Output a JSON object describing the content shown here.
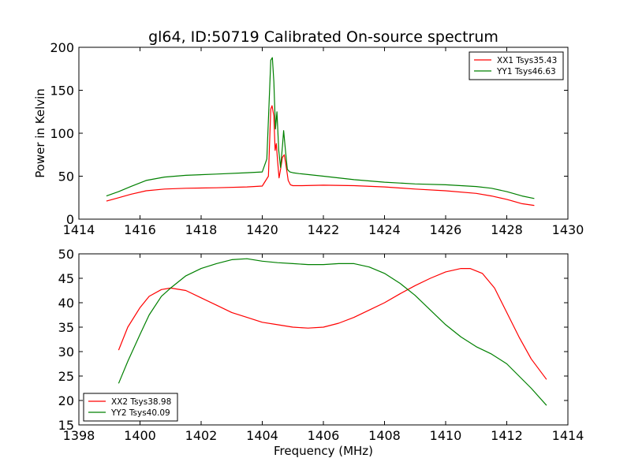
{
  "chart_data": [
    {
      "type": "line",
      "title": "gl64, ID:50719 Calibrated On-source spectrum",
      "xlabel": "",
      "ylabel": "Power in Kelvin",
      "xlim": [
        1414,
        1430
      ],
      "ylim": [
        0,
        200
      ],
      "xticks": [
        1414,
        1416,
        1418,
        1420,
        1422,
        1424,
        1426,
        1428,
        1430
      ],
      "yticks": [
        0,
        50,
        100,
        150,
        200
      ],
      "legend_position": "top-right",
      "grid": false,
      "series": [
        {
          "name": "XX1 Tsys35.43",
          "color": "#ff0000",
          "x": [
            1414.9,
            1415.3,
            1415.7,
            1416.2,
            1416.8,
            1417.5,
            1418.5,
            1419.5,
            1420.0,
            1420.2,
            1420.28,
            1420.32,
            1420.38,
            1420.42,
            1420.46,
            1420.5,
            1420.55,
            1420.6,
            1420.66,
            1420.72,
            1420.78,
            1420.85,
            1420.92,
            1421.0,
            1421.3,
            1422.0,
            1423.0,
            1424.0,
            1425.0,
            1426.0,
            1427.0,
            1427.5,
            1428.0,
            1428.5,
            1428.9
          ],
          "y": [
            21,
            25,
            29,
            33,
            35,
            36,
            36.5,
            37.5,
            38.5,
            50,
            128,
            132,
            120,
            80,
            88,
            68,
            48,
            58,
            72,
            75,
            62,
            45,
            40,
            39,
            39,
            39.5,
            39,
            37.5,
            35,
            33,
            30,
            27,
            23,
            18,
            16
          ]
        },
        {
          "name": "YY1 Tsys46.63",
          "color": "#008000",
          "x": [
            1414.9,
            1415.3,
            1415.7,
            1416.2,
            1416.8,
            1417.5,
            1418.5,
            1419.5,
            1420.0,
            1420.15,
            1420.24,
            1420.28,
            1420.33,
            1420.38,
            1420.43,
            1420.48,
            1420.54,
            1420.6,
            1420.66,
            1420.7,
            1420.76,
            1420.82,
            1420.9,
            1421.0,
            1421.2,
            1422.0,
            1423.0,
            1424.0,
            1425.0,
            1426.0,
            1427.0,
            1427.5,
            1428.0,
            1428.5,
            1428.9
          ],
          "y": [
            27,
            32,
            38,
            45,
            49,
            51,
            52.5,
            54,
            55,
            70,
            150,
            185,
            188,
            160,
            105,
            125,
            80,
            60,
            85,
            103,
            80,
            58,
            55,
            54,
            53,
            50,
            46,
            43,
            41,
            40,
            38,
            36,
            32,
            27,
            24
          ]
        }
      ]
    },
    {
      "type": "line",
      "title": "",
      "xlabel": "Frequency (MHz)",
      "ylabel": "",
      "xlim": [
        1398,
        1414
      ],
      "ylim": [
        15,
        50
      ],
      "xticks": [
        1398,
        1400,
        1402,
        1404,
        1406,
        1408,
        1410,
        1412,
        1414
      ],
      "yticks": [
        15,
        20,
        25,
        30,
        35,
        40,
        45,
        50
      ],
      "legend_position": "bottom-left",
      "grid": false,
      "series": [
        {
          "name": "XX2 Tsys38.98",
          "color": "#ff0000",
          "x": [
            1399.3,
            1399.6,
            1400.0,
            1400.3,
            1400.7,
            1401.0,
            1401.5,
            1402.0,
            1402.5,
            1403.0,
            1403.5,
            1404.0,
            1404.5,
            1405.0,
            1405.5,
            1406.0,
            1406.5,
            1407.0,
            1407.5,
            1408.0,
            1408.5,
            1409.0,
            1409.5,
            1410.0,
            1410.5,
            1410.8,
            1411.2,
            1411.6,
            1412.0,
            1412.4,
            1412.8,
            1413.3
          ],
          "y": [
            30.3,
            35,
            39,
            41.3,
            42.7,
            43,
            42.5,
            41,
            39.5,
            38,
            37,
            36,
            35.5,
            35,
            34.8,
            35,
            35.8,
            37,
            38.5,
            40,
            41.8,
            43.5,
            45,
            46.3,
            47,
            47,
            46,
            43,
            38,
            33,
            28.5,
            24.3
          ]
        },
        {
          "name": "YY2 Tsys40.09",
          "color": "#008000",
          "x": [
            1399.3,
            1399.6,
            1400.0,
            1400.3,
            1400.7,
            1401.0,
            1401.5,
            1402.0,
            1402.5,
            1403.0,
            1403.5,
            1404.0,
            1404.5,
            1405.0,
            1405.5,
            1406.0,
            1406.5,
            1407.0,
            1407.5,
            1408.0,
            1408.5,
            1409.0,
            1409.5,
            1410.0,
            1410.5,
            1411.0,
            1411.5,
            1412.0,
            1412.4,
            1412.8,
            1413.3
          ],
          "y": [
            23.5,
            28,
            33.5,
            37.5,
            41.3,
            43,
            45.5,
            47,
            48,
            48.8,
            49,
            48.5,
            48.2,
            48,
            47.8,
            47.8,
            48,
            48,
            47.3,
            46,
            44,
            41.5,
            38.5,
            35.5,
            33,
            31,
            29.5,
            27.5,
            25,
            22.5,
            19
          ]
        }
      ]
    }
  ]
}
